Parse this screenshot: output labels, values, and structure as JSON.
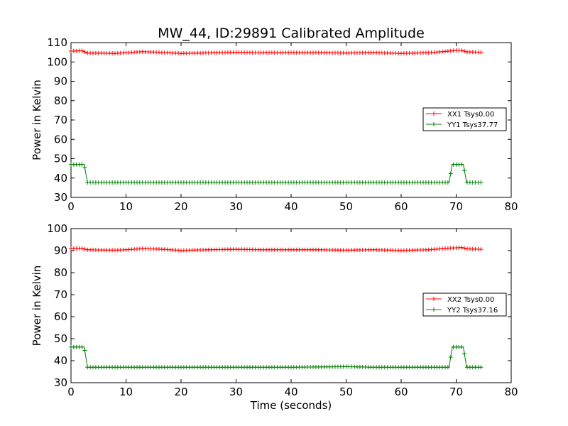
{
  "figure": {
    "title": "MW_44, ID:29891 Calibrated Amplitude"
  },
  "chart_data": [
    {
      "type": "line",
      "title": "MW_44, ID:29891 Calibrated Amplitude",
      "xlabel": "",
      "ylabel": "Power in Kelvin",
      "xlim": [
        0,
        80
      ],
      "ylim": [
        30,
        110
      ],
      "xticks": [
        "0",
        "10",
        "20",
        "30",
        "40",
        "50",
        "60",
        "70",
        "80"
      ],
      "yticks": [
        "30",
        "40",
        "50",
        "60",
        "70",
        "80",
        "90",
        "100",
        "110"
      ],
      "legend": "center-right",
      "grid": false,
      "series": [
        {
          "name": "XX1 Tsys0.00",
          "color": "#ff0000",
          "marker": "+",
          "x": [
            0,
            2,
            3,
            5,
            8,
            10,
            13,
            16,
            20,
            25,
            30,
            35,
            40,
            45,
            50,
            55,
            60,
            65,
            68,
            70,
            71,
            72,
            74.5
          ],
          "y": [
            105.6,
            105.8,
            104.6,
            104.6,
            104.4,
            104.8,
            105.3,
            105.0,
            104.4,
            104.7,
            105.0,
            104.8,
            104.8,
            104.8,
            104.6,
            104.8,
            104.4,
            104.8,
            105.4,
            106.0,
            105.9,
            105.2,
            105.0
          ]
        },
        {
          "name": "YY1 Tsys37.77",
          "color": "#008000",
          "marker": "+",
          "x": [
            0,
            2.4,
            3,
            68.7,
            69.3,
            71.3,
            71.9,
            74.5
          ],
          "y": [
            47.0,
            47.0,
            37.7,
            37.7,
            47.0,
            47.0,
            37.7,
            37.7
          ]
        }
      ]
    },
    {
      "type": "line",
      "title": "",
      "xlabel": "Time (seconds)",
      "ylabel": "Power in Kelvin",
      "xlim": [
        0,
        80
      ],
      "ylim": [
        30,
        100
      ],
      "xticks": [
        "0",
        "10",
        "20",
        "30",
        "40",
        "50",
        "60",
        "70",
        "80"
      ],
      "yticks": [
        "30",
        "40",
        "50",
        "60",
        "70",
        "80",
        "90",
        "100"
      ],
      "legend": "center-right",
      "grid": false,
      "series": [
        {
          "name": "XX2 Tsys0.00",
          "color": "#ff0000",
          "marker": "+",
          "x": [
            0,
            2,
            3,
            5,
            8,
            10,
            13,
            16,
            20,
            25,
            30,
            35,
            40,
            45,
            50,
            55,
            60,
            65,
            68,
            70,
            71,
            72,
            74.5
          ],
          "y": [
            91.0,
            91.0,
            90.4,
            90.3,
            90.2,
            90.4,
            90.9,
            90.7,
            90.1,
            90.4,
            90.6,
            90.4,
            90.4,
            90.4,
            90.2,
            90.4,
            90.1,
            90.4,
            91.0,
            91.3,
            91.4,
            90.8,
            90.6
          ]
        },
        {
          "name": "YY2 Tsys37.16",
          "color": "#008000",
          "marker": "+",
          "x": [
            0,
            2.4,
            3,
            40,
            50,
            55,
            68.7,
            69.3,
            71.3,
            71.9,
            74.5
          ],
          "y": [
            46.2,
            46.2,
            37.0,
            37.0,
            37.3,
            37.0,
            37.0,
            46.2,
            46.2,
            37.0,
            37.0
          ]
        }
      ]
    }
  ]
}
